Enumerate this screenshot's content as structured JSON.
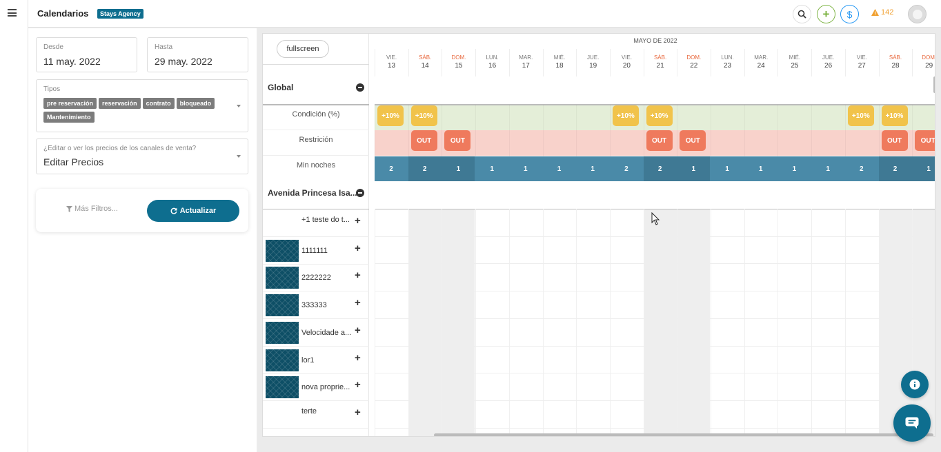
{
  "app": {
    "title": "Calendarios",
    "agency": "Stays Agency",
    "alert_count": "142"
  },
  "colors": {
    "primary": "#0e6e8f",
    "condition": "#f1c34b",
    "out": "#ef7a5d",
    "min_nights": "#4a8aa8"
  },
  "filters": {
    "from_label": "Desde",
    "from_value": "11 may. 2022",
    "to_label": "Hasta",
    "to_value": "29 may. 2022",
    "types_label": "Tipos",
    "types": [
      "pre reservación",
      "reservación",
      "contrato",
      "bloqueado",
      "Mantenimiento"
    ],
    "prices_label": "¿Editar o ver los precios de los canales de venta?",
    "prices_value": "Editar Precios",
    "more_filters": "Más Filtros...",
    "update_label": "Actualizar"
  },
  "calendar": {
    "fullscreen_label": "fullscreen",
    "month": "MAYO DE 2022",
    "days": [
      {
        "dow": "VIE.",
        "num": "13",
        "weekend": false
      },
      {
        "dow": "SÁB.",
        "num": "14",
        "weekend": true
      },
      {
        "dow": "DOM.",
        "num": "15",
        "weekend": true
      },
      {
        "dow": "LUN.",
        "num": "16",
        "weekend": false
      },
      {
        "dow": "MAR.",
        "num": "17",
        "weekend": false
      },
      {
        "dow": "MIÉ.",
        "num": "18",
        "weekend": false
      },
      {
        "dow": "JUE.",
        "num": "19",
        "weekend": false
      },
      {
        "dow": "VIE.",
        "num": "20",
        "weekend": false
      },
      {
        "dow": "SÁB.",
        "num": "21",
        "weekend": true
      },
      {
        "dow": "DOM.",
        "num": "22",
        "weekend": true
      },
      {
        "dow": "LUN.",
        "num": "23",
        "weekend": false
      },
      {
        "dow": "MAR.",
        "num": "24",
        "weekend": false
      },
      {
        "dow": "MIÉ.",
        "num": "25",
        "weekend": false
      },
      {
        "dow": "JUE.",
        "num": "26",
        "weekend": false
      },
      {
        "dow": "VIE.",
        "num": "27",
        "weekend": false
      },
      {
        "dow": "SÁB.",
        "num": "28",
        "weekend": true
      },
      {
        "dow": "DOM.",
        "num": "29",
        "weekend": true
      }
    ],
    "global": {
      "title": "Global",
      "condition_label": "Condición (%)",
      "restriction_label": "Restrición",
      "min_nights_label": "Min noches",
      "condition_text": "+10%",
      "condition_days": [
        0,
        1,
        7,
        8,
        14,
        15
      ],
      "out_text": "OUT",
      "out_days": [
        1,
        2,
        8,
        9,
        15,
        16
      ],
      "min_nights": [
        "2",
        "2",
        "1",
        "1",
        "1",
        "1",
        "1",
        "2",
        "2",
        "1",
        "1",
        "1",
        "1",
        "1",
        "2",
        "2",
        "1"
      ]
    },
    "property_group": {
      "title": "Avenida Princesa Isa...",
      "units": [
        {
          "name": "+1 teste do t...",
          "thumb": false
        },
        {
          "name": "1111111",
          "thumb": true
        },
        {
          "name": "2222222",
          "thumb": true
        },
        {
          "name": "333333",
          "thumb": true
        },
        {
          "name": "Velocidade a...",
          "thumb": true
        },
        {
          "name": "lor1",
          "thumb": true
        },
        {
          "name": "nova proprie...",
          "thumb": true
        },
        {
          "name": "terte",
          "thumb": false
        }
      ]
    }
  }
}
